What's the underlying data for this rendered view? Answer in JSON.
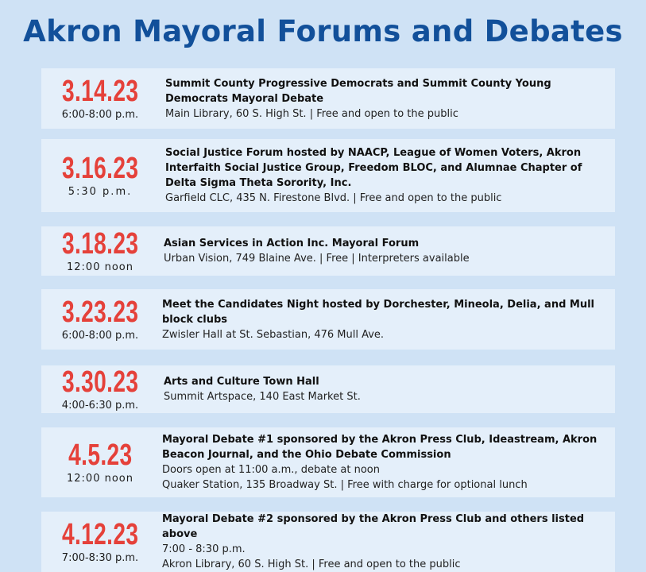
{
  "page": {
    "title": "Akron Mayoral Forums and Debates"
  },
  "events": [
    {
      "date": "3.14.23",
      "time": "6:00-8:00 p.m.",
      "title": "Summit County Progressive Democrats and Summit County Young Democrats Mayoral Debate",
      "details": [
        "Main Library, 60 S. High St. | Free and open to the public"
      ]
    },
    {
      "date": "3.16.23",
      "time": "5:30 p.m.",
      "title": "Social Justice Forum hosted by NAACP, League of Women Voters, Akron Interfaith Social Justice Group, Freedom BLOC, and Alumnae Chapter of Delta Sigma Theta Sorority, Inc.",
      "details": [
        "Garfield CLC, 435 N. Firestone Blvd. | Free and open to the public"
      ]
    },
    {
      "date": "3.18.23",
      "time": "12:00 noon",
      "title": "Asian Services in Action Inc. Mayoral Forum",
      "details": [
        "Urban Vision, 749 Blaine Ave. | Free | Interpreters available"
      ]
    },
    {
      "date": "3.23.23",
      "time": "6:00-8:00 p.m.",
      "title": "Meet the Candidates Night hosted by Dorchester, Mineola, Delia, and Mull block clubs",
      "details": [
        "Zwisler Hall at St. Sebastian, 476 Mull Ave."
      ]
    },
    {
      "date": "3.30.23",
      "time": "4:00-6:30 p.m.",
      "title": "Arts and Culture Town Hall",
      "details": [
        "Summit Artspace, 140 East Market St."
      ]
    },
    {
      "date": "4.5.23",
      "time": "12:00 noon",
      "title": "Mayoral Debate #1 sponsored by the Akron Press Club, Ideastream, Akron Beacon Journal, and the Ohio Debate Commission",
      "details": [
        "Doors open at 11:00 a.m., debate at noon",
        "Quaker Station, 135 Broadway St. | Free with charge for optional lunch"
      ]
    },
    {
      "date": "4.12.23",
      "time": "7:00-8:30 p.m.",
      "title": "Mayoral Debate #2 sponsored by the Akron Press Club and others listed above",
      "details": [
        "7:00 - 8:30 p.m.",
        "Akron Library, 60 S. High St. | Free and open to the public"
      ]
    }
  ]
}
